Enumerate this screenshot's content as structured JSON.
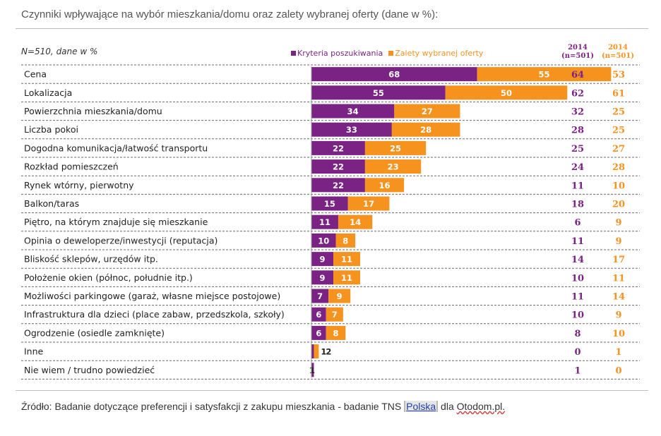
{
  "page": {
    "title": "Czynniki wpływające na wybór mieszkania/domu oraz zalety wybranej oferty (dane w %):",
    "sample_note": "N=510, dane w %",
    "source_prefix": "Źródło: Badanie dotyczące preferencji i satysfakcji z zakupu mieszkania - badanie TNS ",
    "source_link": "Polska",
    "source_mid": " dla ",
    "source_site": "Otodom.pl."
  },
  "colors": {
    "series1": "#7b2285",
    "series2": "#f6921e",
    "rule": "#bdbdbd",
    "dashed": "#6a6a6a"
  },
  "columns": {
    "c1": {
      "year": "2014",
      "n": "(n=501)",
      "color": "#7b2285"
    },
    "c2": {
      "year": "2014",
      "n": "(n=501)",
      "color": "#f6921e"
    }
  },
  "chart_data": {
    "type": "bar",
    "orientation": "horizontal",
    "stacked": true,
    "legend_position": "top",
    "categories": [
      "Cena",
      "Lokalizacja",
      "Powierzchnia mieszkania/domu",
      "Liczba pokoi",
      "Dogodna komunikacja/łatwość  transportu",
      "Rozkład pomieszczeń",
      "Rynek wtórny, pierwotny",
      "Balkon/taras",
      "Piętro, na którym znajduje się mieszkanie",
      "Opinia o deweloperze/inwestycji  (reputacja)",
      "Bliskość sklepów, urzędów itp.",
      "Położenie okien (północ, południe itp.)",
      "Możliwości parkingowe (garaż, własne miejsce postojowe)",
      "Infrastruktura dla dzieci (place zabaw, przedszkola, szkoły)",
      "Ogrodzenie (osiedle zamknięte)",
      "Inne",
      "Nie wiem / trudno powiedzieć"
    ],
    "series": [
      {
        "name": "Kryteria poszukiwania",
        "values": [
          68,
          55,
          34,
          33,
          22,
          22,
          22,
          15,
          11,
          10,
          9,
          9,
          7,
          6,
          6,
          1,
          1
        ]
      },
      {
        "name": "Zalety wybranej oferty",
        "values": [
          55,
          50,
          27,
          28,
          25,
          23,
          16,
          17,
          14,
          8,
          11,
          11,
          9,
          7,
          8,
          2,
          0
        ]
      }
    ],
    "data_labels": [
      [
        "68",
        "55",
        "34",
        "33",
        "22",
        "22",
        "22",
        "15",
        "11",
        "10",
        "9",
        "9",
        "7",
        "6",
        "6",
        "1",
        "1"
      ],
      [
        "55",
        "50",
        "27",
        "28",
        "25",
        "23",
        "16",
        "17",
        "14",
        "8",
        "11",
        "11",
        "9",
        "7",
        "8",
        "2",
        ""
      ]
    ],
    "comparison_2014": {
      "kryteria": [
        "64",
        "62",
        "32",
        "28",
        "25",
        "24",
        "11",
        "18",
        "6",
        "11",
        "14",
        "10",
        "11",
        "10",
        "8",
        "0",
        "1"
      ],
      "zalety": [
        "53",
        "61",
        "25",
        "25",
        "27",
        "28",
        "10",
        "20",
        "9",
        "9",
        "17",
        "11",
        "14",
        "9",
        "10",
        "1",
        "0"
      ]
    },
    "grid": false
  }
}
